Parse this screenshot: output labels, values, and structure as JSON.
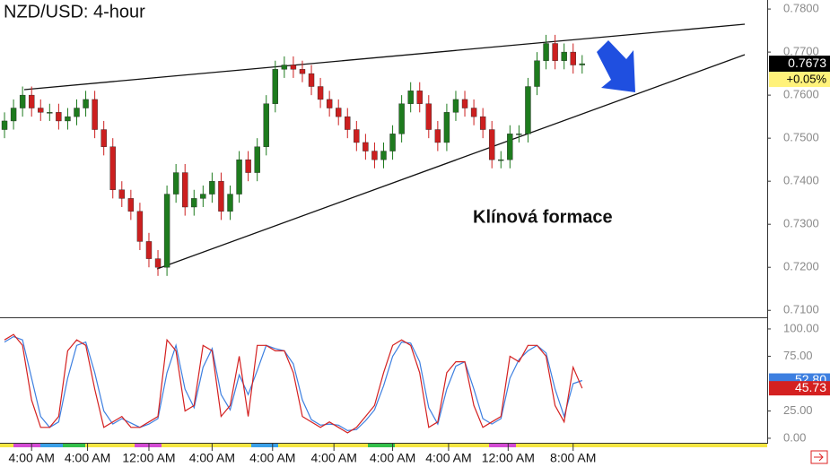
{
  "chart_data": [
    {
      "type": "candlestick",
      "title": "NZD/USD: 4-hour",
      "annotation": "Klínová formace",
      "change_label": "+0.05%",
      "xlim": [
        -0.5,
        84.5
      ],
      "ylim": [
        0.7088,
        0.7821
      ],
      "yticks": [
        {
          "value": 0.78,
          "label": "0.7800"
        },
        {
          "value": 0.77,
          "label": "0.7700"
        },
        {
          "value": 0.76,
          "label": "0.7600"
        },
        {
          "value": 0.75,
          "label": "0.7500"
        },
        {
          "value": 0.74,
          "label": "0.7400"
        },
        {
          "value": 0.73,
          "label": "0.7300"
        },
        {
          "value": 0.72,
          "label": "0.7200"
        },
        {
          "value": 0.71,
          "label": "0.7100"
        }
      ],
      "up_color": "#1e7b1e",
      "down_color": "#cc1f1f",
      "open": [
        0.752,
        0.754,
        0.757,
        0.76,
        0.757,
        0.756,
        0.756,
        0.754,
        0.755,
        0.757,
        0.759,
        0.752,
        0.748,
        0.738,
        0.736,
        0.733,
        0.726,
        0.722,
        0.72,
        0.737,
        0.742,
        0.734,
        0.736,
        0.737,
        0.74,
        0.733,
        0.737,
        0.745,
        0.742,
        0.748,
        0.758,
        0.766,
        0.767,
        0.766,
        0.765,
        0.762,
        0.759,
        0.757,
        0.755,
        0.752,
        0.749,
        0.747,
        0.745,
        0.747,
        0.751,
        0.758,
        0.761,
        0.758,
        0.752,
        0.749,
        0.756,
        0.759,
        0.757,
        0.755,
        0.752,
        0.745,
        0.745,
        0.751,
        0.751,
        0.762,
        0.768,
        0.772,
        0.768,
        0.77,
        0.767
      ],
      "high": [
        0.756,
        0.759,
        0.762,
        0.762,
        0.759,
        0.758,
        0.758,
        0.757,
        0.759,
        0.761,
        0.761,
        0.754,
        0.75,
        0.74,
        0.738,
        0.735,
        0.728,
        0.724,
        0.739,
        0.744,
        0.744,
        0.738,
        0.739,
        0.742,
        0.742,
        0.739,
        0.747,
        0.747,
        0.75,
        0.76,
        0.768,
        0.769,
        0.769,
        0.768,
        0.767,
        0.764,
        0.761,
        0.759,
        0.757,
        0.754,
        0.751,
        0.749,
        0.749,
        0.753,
        0.76,
        0.763,
        0.763,
        0.76,
        0.754,
        0.758,
        0.761,
        0.761,
        0.759,
        0.757,
        0.754,
        0.747,
        0.753,
        0.753,
        0.764,
        0.77,
        0.774,
        0.774,
        0.772,
        0.772,
        0.7693
      ],
      "low": [
        0.75,
        0.752,
        0.755,
        0.755,
        0.754,
        0.754,
        0.752,
        0.752,
        0.753,
        0.755,
        0.75,
        0.746,
        0.736,
        0.734,
        0.731,
        0.724,
        0.72,
        0.718,
        0.718,
        0.735,
        0.732,
        0.732,
        0.734,
        0.735,
        0.731,
        0.731,
        0.735,
        0.74,
        0.74,
        0.746,
        0.756,
        0.764,
        0.764,
        0.763,
        0.76,
        0.757,
        0.755,
        0.753,
        0.75,
        0.747,
        0.745,
        0.743,
        0.743,
        0.745,
        0.749,
        0.756,
        0.756,
        0.75,
        0.747,
        0.747,
        0.754,
        0.755,
        0.753,
        0.75,
        0.743,
        0.743,
        0.743,
        0.749,
        0.749,
        0.76,
        0.766,
        0.766,
        0.766,
        0.765,
        0.765
      ],
      "close": [
        0.754,
        0.757,
        0.76,
        0.757,
        0.756,
        0.756,
        0.754,
        0.755,
        0.757,
        0.759,
        0.752,
        0.748,
        0.738,
        0.736,
        0.733,
        0.726,
        0.722,
        0.72,
        0.737,
        0.742,
        0.734,
        0.736,
        0.737,
        0.74,
        0.733,
        0.737,
        0.745,
        0.742,
        0.748,
        0.758,
        0.766,
        0.767,
        0.766,
        0.765,
        0.762,
        0.759,
        0.757,
        0.755,
        0.752,
        0.749,
        0.747,
        0.745,
        0.747,
        0.751,
        0.758,
        0.761,
        0.758,
        0.752,
        0.749,
        0.756,
        0.759,
        0.757,
        0.755,
        0.752,
        0.745,
        0.745,
        0.751,
        0.751,
        0.762,
        0.768,
        0.772,
        0.768,
        0.77,
        0.767,
        0.7673
      ]
    },
    {
      "type": "line",
      "xlim": [
        -0.5,
        84.5
      ],
      "ylim": [
        -2.5,
        105.7
      ],
      "yticks": [
        {
          "value": 100,
          "label": "100.00"
        },
        {
          "value": 75,
          "label": "75.00"
        },
        {
          "value": 25,
          "label": "25.00"
        },
        {
          "value": 0,
          "label": "0.00"
        }
      ],
      "xticks": [
        {
          "value": 3,
          "label": "4:00 AM"
        },
        {
          "value": 9.2,
          "label": "4:00 AM"
        },
        {
          "value": 16,
          "label": "12:00 AM"
        },
        {
          "value": 23,
          "label": "4:00 AM"
        },
        {
          "value": 29.7,
          "label": "4:00 AM"
        },
        {
          "value": 36.5,
          "label": "4:00 AM"
        },
        {
          "value": 43,
          "label": "4:00 AM"
        },
        {
          "value": 49.2,
          "label": "4:00 AM"
        },
        {
          "value": 55.8,
          "label": "12:00 AM"
        },
        {
          "value": 63,
          "label": "8:00 AM"
        }
      ],
      "series": [
        {
          "color": "#3d7fe0",
          "values": [
            88,
            93,
            90,
            55,
            20,
            10,
            15,
            55,
            85,
            88,
            60,
            25,
            13,
            18,
            14,
            10,
            13,
            18,
            60,
            85,
            45,
            28,
            65,
            82,
            40,
            26,
            58,
            40,
            62,
            85,
            82,
            80,
            68,
            35,
            17,
            12,
            13,
            12,
            7,
            8,
            16,
            26,
            48,
            75,
            88,
            87,
            70,
            28,
            13,
            45,
            66,
            70,
            45,
            18,
            13,
            18,
            55,
            72,
            80,
            85,
            78,
            45,
            20,
            50,
            52.8
          ],
          "value_labels": [
            null,
            null,
            null,
            null,
            null,
            null,
            null,
            null,
            null,
            null,
            null,
            null,
            null,
            null,
            null,
            null,
            null,
            null,
            null,
            null,
            null,
            null,
            null,
            null,
            null,
            null,
            null,
            null,
            null,
            null,
            null,
            null,
            null,
            null,
            null,
            null,
            null,
            null,
            null,
            null,
            null,
            null,
            null,
            null,
            null,
            null,
            null,
            null,
            null,
            null,
            null,
            null,
            null,
            null,
            null,
            null,
            null,
            null,
            null,
            null,
            null,
            null,
            null,
            null,
            "52.80"
          ]
        },
        {
          "color": "#d42020",
          "values": [
            90,
            95,
            85,
            35,
            10,
            10,
            20,
            80,
            90,
            85,
            45,
            10,
            15,
            20,
            10,
            10,
            15,
            20,
            90,
            80,
            25,
            30,
            85,
            80,
            20,
            30,
            75,
            20,
            85,
            85,
            80,
            80,
            60,
            20,
            15,
            10,
            15,
            10,
            5,
            10,
            20,
            30,
            60,
            85,
            90,
            85,
            60,
            10,
            15,
            60,
            70,
            70,
            30,
            10,
            15,
            20,
            75,
            70,
            85,
            85,
            75,
            30,
            15,
            65,
            45.73
          ]
        }
      ]
    }
  ]
}
